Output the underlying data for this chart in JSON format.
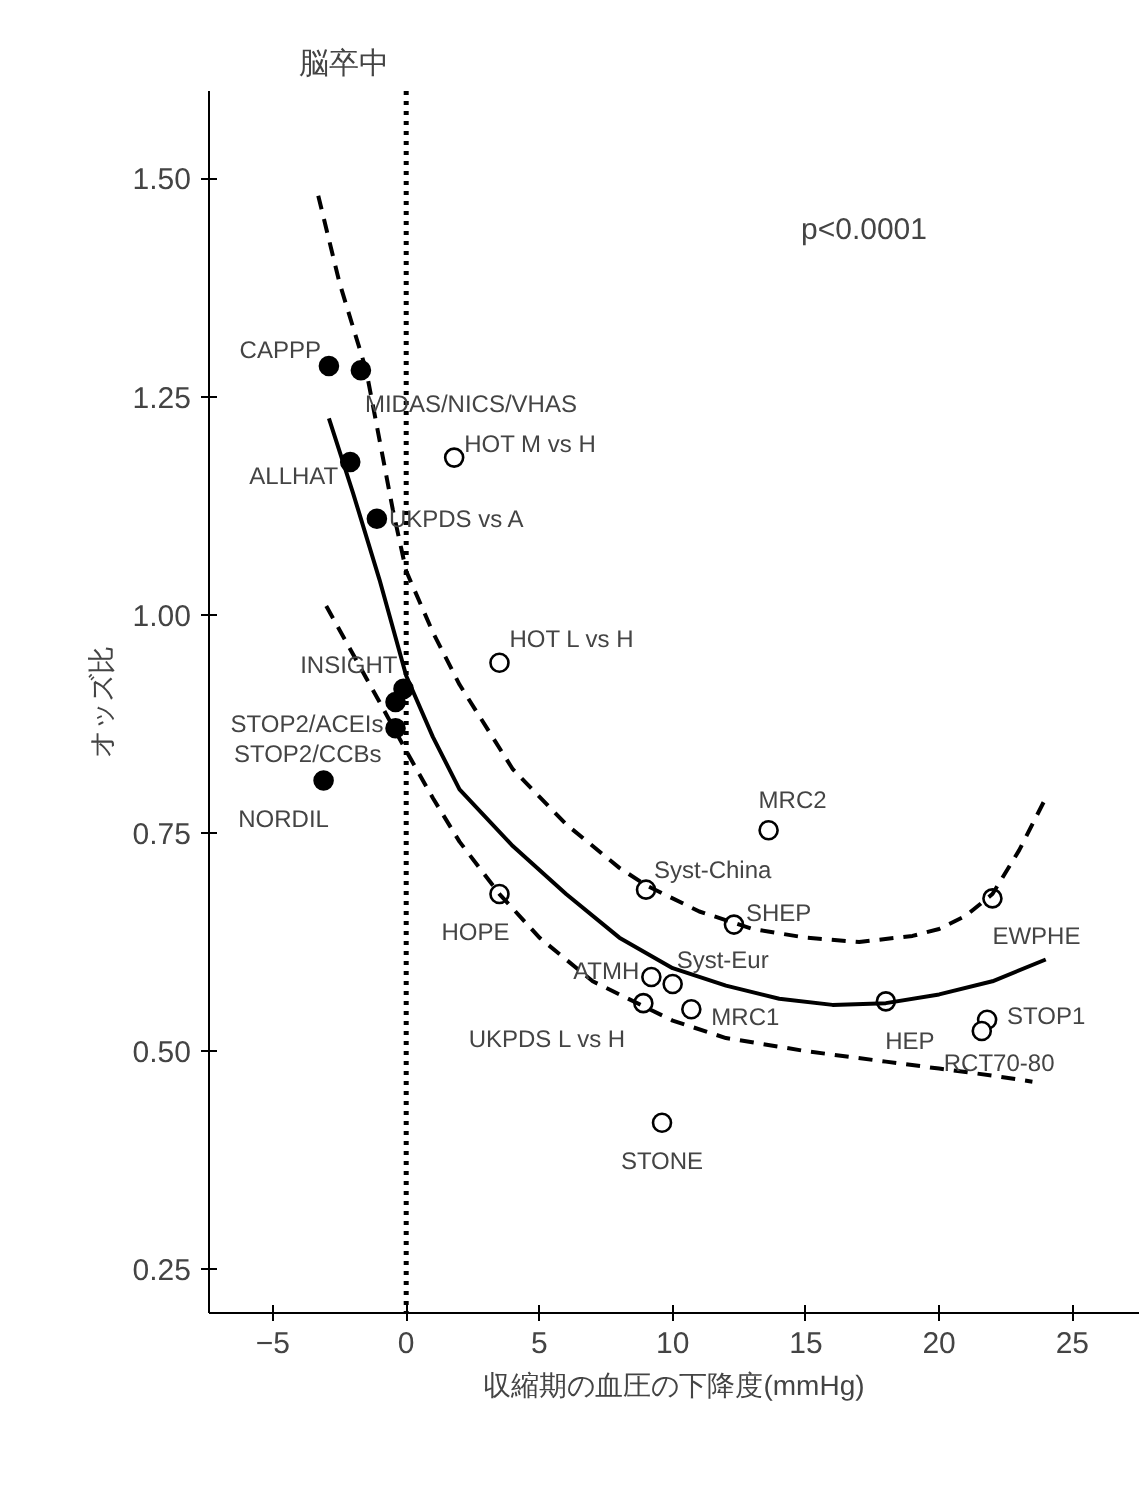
{
  "chart_data": {
    "type": "scatter",
    "title": "脳卒中",
    "xlabel": "収縮期の血圧の下降度(mmHg)",
    "ylabel": "オッズ比",
    "xlim": [
      -7.4,
      27.5
    ],
    "ylim": [
      0.2,
      1.6
    ],
    "xticks": [
      -5,
      0,
      5,
      10,
      15,
      20,
      25
    ],
    "yticks": [
      {
        "value": 0.25,
        "label": "0.25"
      },
      {
        "value": 0.5,
        "label": "0.50"
      },
      {
        "value": 0.75,
        "label": "0.75"
      },
      {
        "value": 1.0,
        "label": "1.00"
      },
      {
        "value": 1.25,
        "label": "1.25"
      },
      {
        "value": 1.5,
        "label": "1.50"
      }
    ],
    "grid": false,
    "marker": "circle",
    "series": [
      {
        "color": "#000000",
        "x": [
          -2.9,
          -1.7,
          -2.1,
          -1.1,
          -0.1,
          -0.4,
          -0.4,
          -3.1
        ],
        "values": [
          1.285,
          1.28,
          1.175,
          1.11,
          0.915,
          0.9,
          0.87,
          0.81
        ]
      },
      {
        "color": "#ffffff",
        "x": [
          1.8,
          3.5,
          13.6,
          9.0,
          12.3,
          3.5,
          22.0,
          9.2,
          10.0,
          8.9,
          10.7,
          18.0,
          21.8,
          21.6,
          9.6
        ],
        "values": [
          1.18,
          0.945,
          0.753,
          0.685,
          0.645,
          0.68,
          0.675,
          0.585,
          0.577,
          0.555,
          0.548,
          0.557,
          0.536,
          0.523,
          0.418
        ]
      },
      {
        "type": "line",
        "color": "#000000",
        "marker": "none",
        "line_style": "solid",
        "x": [
          -2.9,
          -2,
          -1,
          0,
          1,
          2,
          4,
          6,
          8,
          10,
          12,
          14,
          16,
          18,
          20,
          22,
          24
        ],
        "values": [
          1.225,
          1.14,
          1.04,
          0.93,
          0.86,
          0.8,
          0.735,
          0.68,
          0.63,
          0.595,
          0.575,
          0.56,
          0.553,
          0.555,
          0.565,
          0.58,
          0.605
        ]
      },
      {
        "type": "line",
        "color": "#000000",
        "marker": "none",
        "line_style": "dashed",
        "x": [
          -3.3,
          -2.5,
          -1.5,
          -0.5,
          0,
          1,
          2,
          4,
          6,
          8,
          9,
          11,
          13,
          15,
          17,
          19,
          20,
          21,
          22,
          23,
          24
        ],
        "values": [
          1.48,
          1.38,
          1.28,
          1.12,
          1.05,
          0.98,
          0.92,
          0.823,
          0.76,
          0.71,
          0.69,
          0.66,
          0.64,
          0.63,
          0.625,
          0.632,
          0.64,
          0.655,
          0.68,
          0.73,
          0.79
        ]
      },
      {
        "type": "line",
        "color": "#000000",
        "marker": "none",
        "line_style": "dashed",
        "x": [
          -3,
          -2,
          -1,
          0,
          1,
          2,
          3.5,
          5,
          7,
          10,
          12,
          15,
          18,
          20,
          22,
          23.5
        ],
        "values": [
          1.01,
          0.955,
          0.9,
          0.844,
          0.79,
          0.74,
          0.68,
          0.63,
          0.58,
          0.535,
          0.515,
          0.5,
          0.488,
          0.48,
          0.472,
          0.465
        ]
      }
    ],
    "ref_lines": [
      {
        "axis": "x",
        "value": 0,
        "line_style": "dotted",
        "color": "#000000"
      }
    ],
    "annotations": [
      "p<0.0001",
      {
        "text": "CAPPP",
        "x": -2.9,
        "y": 1.285
      },
      {
        "text": "MIDAS/NICS/VHAS",
        "x": -1.7,
        "y": 1.28
      },
      {
        "text": "ALLHAT",
        "x": -2.1,
        "y": 1.175
      },
      {
        "text": "UKPDS vs A",
        "x": -1.1,
        "y": 1.11
      },
      {
        "text": "INSIGHT",
        "x": -0.1,
        "y": 0.915
      },
      {
        "text": "STOP2/ACEIs",
        "x": -0.4,
        "y": 0.9
      },
      {
        "text": "STOP2/CCBs",
        "x": -0.4,
        "y": 0.87
      },
      {
        "text": "NORDIL",
        "x": -3.1,
        "y": 0.81
      },
      {
        "text": "HOT M vs H",
        "x": 1.8,
        "y": 1.18
      },
      {
        "text": "HOT L vs H",
        "x": 3.5,
        "y": 0.945
      },
      {
        "text": "MRC2",
        "x": 13.6,
        "y": 0.753
      },
      {
        "text": "Syst-China",
        "x": 9.0,
        "y": 0.685
      },
      {
        "text": "SHEP",
        "x": 12.3,
        "y": 0.645
      },
      {
        "text": "HOPE",
        "x": 3.5,
        "y": 0.68
      },
      {
        "text": "EWPHE",
        "x": 22.0,
        "y": 0.675
      },
      {
        "text": "ATMH",
        "x": 9.2,
        "y": 0.585
      },
      {
        "text": "Syst-Eur",
        "x": 10.0,
        "y": 0.577
      },
      {
        "text": "UKPDS L vs H",
        "x": 8.9,
        "y": 0.555
      },
      {
        "text": "MRC1",
        "x": 10.7,
        "y": 0.548
      },
      {
        "text": "HEP",
        "x": 18.0,
        "y": 0.557
      },
      {
        "text": "STOP1",
        "x": 21.8,
        "y": 0.536
      },
      {
        "text": "RCT70-80",
        "x": 21.6,
        "y": 0.523
      },
      {
        "text": "STONE",
        "x": 9.6,
        "y": 0.418
      }
    ]
  }
}
